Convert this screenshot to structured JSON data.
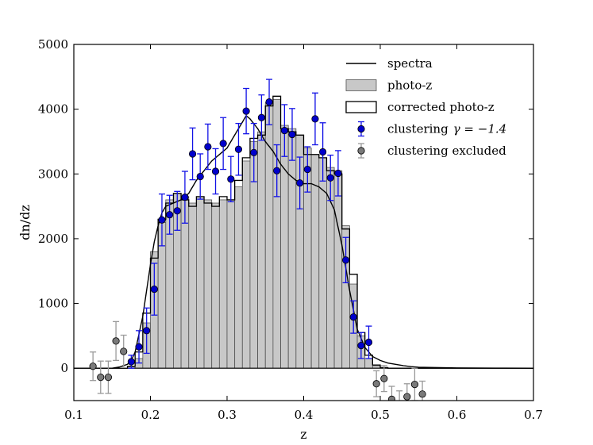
{
  "chart_data": {
    "type": "histogram",
    "title": "",
    "xlabel": "z",
    "ylabel": "dn/dz",
    "xlim": [
      0.1,
      0.7
    ],
    "ylim": [
      -500,
      5000
    ],
    "xticks": [
      "0.1",
      "0.2",
      "0.3",
      "0.4",
      "0.5",
      "0.6",
      "0.7"
    ],
    "yticks": [
      "0",
      "1000",
      "2000",
      "3000",
      "4000",
      "5000"
    ],
    "xtick_values": [
      0.1,
      0.2,
      0.3,
      0.4,
      0.5,
      0.6,
      0.7
    ],
    "ytick_values": [
      0,
      1000,
      2000,
      3000,
      4000,
      5000
    ],
    "grid": false,
    "legend_position": "top-right",
    "legend": [
      {
        "label": "spectra",
        "kind": "line"
      },
      {
        "label": "photo-z",
        "kind": "filled-bar"
      },
      {
        "label": "corrected photo-z",
        "kind": "open-bar"
      },
      {
        "label": "clustering",
        "math": "γ = −1.4",
        "kind": "point"
      },
      {
        "label": "clustering excluded",
        "kind": "point"
      }
    ],
    "colors": {
      "spectra": "#000000",
      "photoz_fill": "#c8c8c8",
      "photoz_edge": "#555555",
      "corrected_edge": "#000000",
      "clustering": "#0000cc",
      "clustering_err": "#1414e6",
      "excluded": "#7a7a7a",
      "excluded_err": "#9a9a9a"
    },
    "bin_edges": [
      0.1,
      0.11,
      0.12,
      0.13,
      0.14,
      0.15,
      0.16,
      0.17,
      0.18,
      0.19,
      0.2,
      0.21,
      0.22,
      0.23,
      0.24,
      0.25,
      0.26,
      0.27,
      0.28,
      0.29,
      0.3,
      0.31,
      0.32,
      0.33,
      0.34,
      0.35,
      0.36,
      0.37,
      0.38,
      0.39,
      0.4,
      0.41,
      0.42,
      0.43,
      0.44,
      0.45,
      0.46,
      0.47,
      0.48,
      0.49,
      0.5,
      0.51,
      0.52,
      0.53,
      0.54,
      0.55,
      0.56,
      0.57,
      0.58,
      0.59,
      0.6,
      0.61,
      0.62,
      0.63,
      0.64,
      0.65,
      0.66,
      0.67,
      0.68,
      0.69,
      0.7
    ],
    "photoz_values": [
      0,
      0,
      0,
      0,
      0,
      0,
      0,
      20,
      150,
      700,
      1800,
      2250,
      2600,
      2700,
      2650,
      2550,
      2650,
      2600,
      2550,
      2600,
      2600,
      2800,
      3200,
      3500,
      3650,
      4100,
      4150,
      3750,
      3700,
      3600,
      3400,
      3300,
      3250,
      3100,
      3050,
      2200,
      1300,
      500,
      150,
      40,
      10,
      0,
      0,
      0,
      0,
      0,
      0,
      0,
      0,
      0,
      0,
      0,
      0,
      0,
      0,
      0,
      0,
      0,
      0,
      0
    ],
    "corrected_values": [
      0,
      0,
      0,
      0,
      0,
      0,
      0,
      30,
      250,
      850,
      1700,
      2300,
      2550,
      2700,
      2600,
      2500,
      2650,
      2550,
      2500,
      2650,
      2600,
      2900,
      3250,
      3550,
      3600,
      4050,
      4200,
      3700,
      3650,
      3600,
      3300,
      3300,
      3250,
      3050,
      3000,
      2150,
      1450,
      550,
      200,
      50,
      10,
      0,
      0,
      0,
      0,
      0,
      0,
      0,
      0,
      0,
      0,
      0,
      0,
      0,
      0,
      0,
      0,
      0,
      0,
      0
    ],
    "spectra_x": [
      0.15,
      0.16,
      0.17,
      0.175,
      0.18,
      0.19,
      0.2,
      0.205,
      0.21,
      0.215,
      0.22,
      0.23,
      0.24,
      0.25,
      0.26,
      0.27,
      0.28,
      0.29,
      0.3,
      0.31,
      0.32,
      0.325,
      0.33,
      0.34,
      0.35,
      0.36,
      0.37,
      0.38,
      0.39,
      0.4,
      0.41,
      0.42,
      0.43,
      0.44,
      0.45,
      0.46,
      0.47,
      0.48,
      0.49,
      0.5,
      0.51,
      0.52,
      0.53,
      0.54,
      0.55,
      0.57,
      0.6,
      0.65,
      0.7
    ],
    "spectra_y": [
      0,
      20,
      60,
      120,
      250,
      800,
      1600,
      1950,
      2200,
      2400,
      2500,
      2550,
      2600,
      2700,
      2900,
      3050,
      3200,
      3300,
      3400,
      3600,
      3800,
      3900,
      3850,
      3700,
      3500,
      3350,
      3150,
      3000,
      2900,
      2850,
      2850,
      2800,
      2700,
      2450,
      1900,
      1200,
      600,
      320,
      180,
      120,
      80,
      60,
      40,
      25,
      15,
      10,
      5,
      2,
      0
    ],
    "clustering_points": [
      {
        "x": 0.175,
        "y": 100,
        "err": 100
      },
      {
        "x": 0.185,
        "y": 330,
        "err": 250
      },
      {
        "x": 0.195,
        "y": 580,
        "err": 350
      },
      {
        "x": 0.205,
        "y": 1220,
        "err": 400
      },
      {
        "x": 0.215,
        "y": 2290,
        "err": 400
      },
      {
        "x": 0.225,
        "y": 2370,
        "err": 300
      },
      {
        "x": 0.235,
        "y": 2430,
        "err": 300
      },
      {
        "x": 0.245,
        "y": 2640,
        "err": 400
      },
      {
        "x": 0.255,
        "y": 3310,
        "err": 400
      },
      {
        "x": 0.265,
        "y": 2960,
        "err": 350
      },
      {
        "x": 0.275,
        "y": 3420,
        "err": 350
      },
      {
        "x": 0.285,
        "y": 3040,
        "err": 350
      },
      {
        "x": 0.295,
        "y": 3470,
        "err": 400
      },
      {
        "x": 0.305,
        "y": 2920,
        "err": 350
      },
      {
        "x": 0.315,
        "y": 3380,
        "err": 400
      },
      {
        "x": 0.325,
        "y": 3970,
        "err": 350
      },
      {
        "x": 0.335,
        "y": 3330,
        "err": 450
      },
      {
        "x": 0.345,
        "y": 3870,
        "err": 350
      },
      {
        "x": 0.355,
        "y": 4110,
        "err": 350
      },
      {
        "x": 0.365,
        "y": 3050,
        "err": 400
      },
      {
        "x": 0.375,
        "y": 3670,
        "err": 400
      },
      {
        "x": 0.385,
        "y": 3610,
        "err": 400
      },
      {
        "x": 0.395,
        "y": 2860,
        "err": 400
      },
      {
        "x": 0.405,
        "y": 3070,
        "err": 350
      },
      {
        "x": 0.415,
        "y": 3850,
        "err": 400
      },
      {
        "x": 0.425,
        "y": 3340,
        "err": 450
      },
      {
        "x": 0.435,
        "y": 2940,
        "err": 350
      },
      {
        "x": 0.445,
        "y": 3010,
        "err": 350
      },
      {
        "x": 0.455,
        "y": 1670,
        "err": 350
      },
      {
        "x": 0.465,
        "y": 790,
        "err": 250
      },
      {
        "x": 0.475,
        "y": 350,
        "err": 200
      },
      {
        "x": 0.485,
        "y": 400,
        "err": 250
      }
    ],
    "excluded_points": [
      {
        "x": 0.125,
        "y": 30,
        "err": 220
      },
      {
        "x": 0.135,
        "y": -140,
        "err": 250
      },
      {
        "x": 0.145,
        "y": -140,
        "err": 250
      },
      {
        "x": 0.155,
        "y": 420,
        "err": 300
      },
      {
        "x": 0.165,
        "y": 260,
        "err": 250
      },
      {
        "x": 0.495,
        "y": -240,
        "err": 200
      },
      {
        "x": 0.505,
        "y": -160,
        "err": 200
      },
      {
        "x": 0.515,
        "y": -480,
        "err": 200
      },
      {
        "x": 0.525,
        "y": -600,
        "err": 250
      },
      {
        "x": 0.535,
        "y": -440,
        "err": 200
      },
      {
        "x": 0.545,
        "y": -250,
        "err": 250
      },
      {
        "x": 0.555,
        "y": -400,
        "err": 200
      }
    ]
  }
}
